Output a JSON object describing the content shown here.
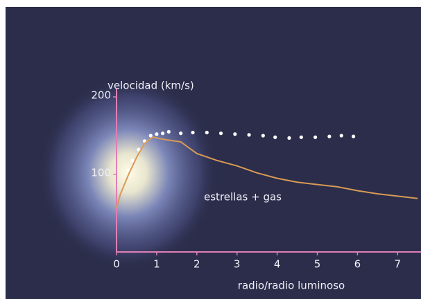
{
  "chart_data": {
    "type": "line",
    "y_label": "velocidad (km/s)",
    "x_label": "radio/radio luminoso",
    "xlim": [
      0,
      7.6
    ],
    "ylim": [
      0,
      210
    ],
    "xticks": [
      0,
      1,
      2,
      3,
      4,
      5,
      6,
      7
    ],
    "yticks": [
      100,
      200
    ],
    "axis_color": "#e07fb4",
    "series": [
      {
        "color": "#ffffff",
        "style": "dotted",
        "x": [
          0.3,
          0.4,
          0.55,
          0.7,
          0.85,
          1.0,
          1.15,
          1.3,
          1.6,
          1.9,
          2.25,
          2.6,
          2.95,
          3.3,
          3.65,
          3.95,
          4.3,
          4.6,
          4.95,
          5.3,
          5.6,
          5.9
        ],
        "values": [
          105,
          118,
          132,
          143,
          150,
          152,
          153,
          155,
          153,
          154,
          154,
          153,
          152,
          151,
          150,
          148,
          147,
          148,
          148,
          149,
          150,
          149
        ]
      },
      {
        "name": "estrellas + gas",
        "color": "#d99a55",
        "style": "solid",
        "x": [
          0.0,
          0.1,
          0.3,
          0.5,
          0.7,
          0.9,
          1.2,
          1.6,
          2.0,
          2.5,
          3.0,
          3.5,
          4.0,
          4.5,
          5.0,
          5.5,
          6.0,
          6.5,
          7.0,
          7.5
        ],
        "values": [
          57,
          75,
          100,
          122,
          140,
          148,
          145,
          142,
          127,
          118,
          111,
          102,
          95,
          90,
          87,
          84,
          79,
          75,
          72,
          69
        ]
      }
    ]
  }
}
